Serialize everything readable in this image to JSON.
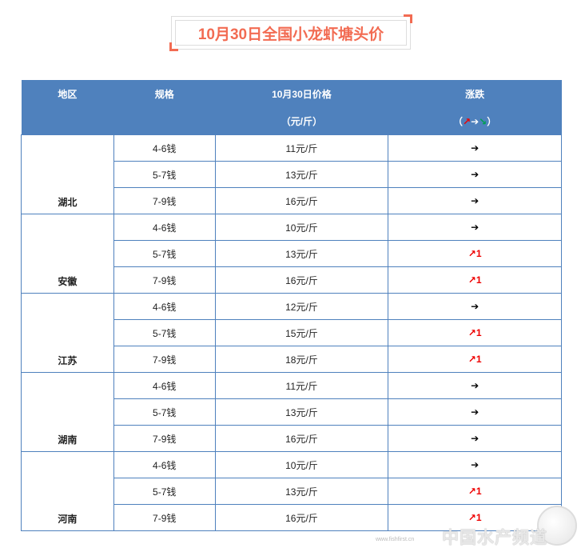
{
  "title": "10月30日全国小龙虾塘头价",
  "header": {
    "region": "地区",
    "spec": "规格",
    "price": "10月30日价格",
    "price_unit": "（元/斤）",
    "change": "涨跌",
    "legend_open": "（",
    "legend_up": "↗",
    "legend_flat": "➔",
    "legend_down": "↘",
    "legend_close": "）"
  },
  "colors": {
    "header_bg": "#4f81bd",
    "title": "#f26b52",
    "up": "#ee0000",
    "down": "#00a050"
  },
  "regions": [
    {
      "name": "湖北",
      "rows": [
        {
          "spec": "4-6钱",
          "price": "11元/斤",
          "change": "➔",
          "trend": "flat"
        },
        {
          "spec": "5-7钱",
          "price": "13元/斤",
          "change": "➔",
          "trend": "flat"
        },
        {
          "spec": "7-9钱",
          "price": "16元/斤",
          "change": "➔",
          "trend": "flat"
        }
      ]
    },
    {
      "name": "安徽",
      "rows": [
        {
          "spec": "4-6钱",
          "price": "10元/斤",
          "change": "➔",
          "trend": "flat"
        },
        {
          "spec": "5-7钱",
          "price": "13元/斤",
          "change": "↗1",
          "trend": "up"
        },
        {
          "spec": "7-9钱",
          "price": "16元/斤",
          "change": "↗1",
          "trend": "up"
        }
      ]
    },
    {
      "name": "江苏",
      "rows": [
        {
          "spec": "4-6钱",
          "price": "12元/斤",
          "change": "➔",
          "trend": "flat"
        },
        {
          "spec": "5-7钱",
          "price": "15元/斤",
          "change": "↗1",
          "trend": "up"
        },
        {
          "spec": "7-9钱",
          "price": "18元/斤",
          "change": "↗1",
          "trend": "up"
        }
      ]
    },
    {
      "name": "湖南",
      "rows": [
        {
          "spec": "4-6钱",
          "price": "11元/斤",
          "change": "➔",
          "trend": "flat"
        },
        {
          "spec": "5-7钱",
          "price": "13元/斤",
          "change": "➔",
          "trend": "flat"
        },
        {
          "spec": "7-9钱",
          "price": "16元/斤",
          "change": "➔",
          "trend": "flat"
        }
      ]
    },
    {
      "name": "河南",
      "rows": [
        {
          "spec": "4-6钱",
          "price": "10元/斤",
          "change": "➔",
          "trend": "flat"
        },
        {
          "spec": "5-7钱",
          "price": "13元/斤",
          "change": "↗1",
          "trend": "up"
        },
        {
          "spec": "7-9钱",
          "price": "16元/斤",
          "change": "↗1",
          "trend": "up"
        }
      ]
    }
  ],
  "watermark": {
    "text": "中国水产频道",
    "url": "www.fishfirst.cn"
  }
}
